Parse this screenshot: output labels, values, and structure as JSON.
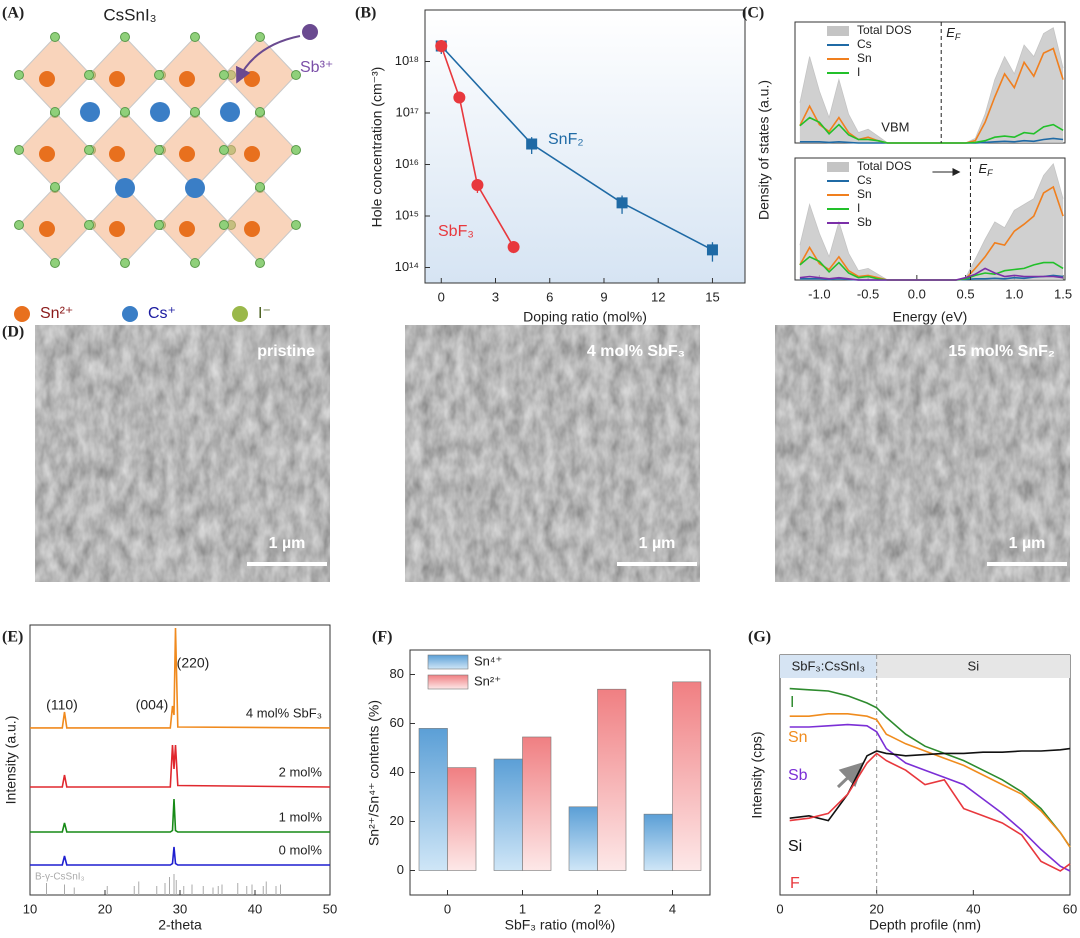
{
  "panel_a": {
    "label": "(A)",
    "title": "CsSnI₃",
    "dopant": "Sb³⁺",
    "legend": [
      "Sn²⁺",
      "Cs⁺",
      "I⁻"
    ]
  },
  "panel_d": {
    "label": "(D)",
    "images": [
      {
        "caption": "pristine",
        "scale": "1 µm"
      },
      {
        "caption": "4 mol% SbF₃",
        "scale": "1 µm"
      },
      {
        "caption": "15 mol% SnF₂",
        "scale": "1 µm"
      }
    ]
  },
  "chart_data": [
    {
      "type": "line",
      "panel": "(B)",
      "xlabel": "Doping ratio (mol%)",
      "ylabel": "Hole concentration (cm⁻³)",
      "log_y": true,
      "background": "#d6e4f3",
      "xlim": [
        -0.9,
        16.8
      ],
      "ylim": [
        50000000000000.0,
        1e+19
      ],
      "xticks": [
        0,
        3,
        6,
        9,
        12,
        15
      ],
      "yticks": [
        {
          "value": 100000000000000.0,
          "label": "10¹⁴"
        },
        {
          "value": 1000000000000000.0,
          "label": "10¹⁵"
        },
        {
          "value": 1e+16,
          "label": "10¹⁶"
        },
        {
          "value": 1e+17,
          "label": "10¹⁷"
        },
        {
          "value": 1e+18,
          "label": "10¹⁸"
        }
      ],
      "series": [
        {
          "name": "SnF₂",
          "color": "#1f6aa5",
          "marker": "square",
          "x": [
            0,
            5,
            10,
            15
          ],
          "values": [
            2e+18,
            2.5e+16,
            1800000000000000.0,
            220000000000000.0
          ],
          "errors": [
            6e+17,
            9000000000000000.0,
            700000000000000.0,
            90000000000000.0
          ]
        },
        {
          "name": "SbF₃",
          "color": "#e8383d",
          "marker": "circle",
          "x": [
            0,
            1,
            2,
            4
          ],
          "values": [
            2e+18,
            2e+17,
            4000000000000000.0,
            250000000000000.0
          ],
          "errors": [
            5e+17,
            4e+16,
            1200000000000000.0,
            60000000000000.0
          ]
        }
      ]
    },
    {
      "type": "line",
      "panel": "(C)",
      "ylabel": "Density of states (a.u.)",
      "xlim": [
        -1.25,
        1.52
      ],
      "ylim": [
        0,
        10.5
      ],
      "vline": 0.25,
      "vline_label": "E",
      "vline_sub": "F",
      "annotation": "VBM",
      "legend": "upper left",
      "x": [
        -1.2,
        -1.1,
        -1.0,
        -0.9,
        -0.8,
        -0.7,
        -0.6,
        -0.5,
        -0.4,
        -0.3,
        -0.2,
        -0.1,
        0,
        0.1,
        0.2,
        0.3,
        0.4,
        0.5,
        0.6,
        0.7,
        0.8,
        0.9,
        1.0,
        1.1,
        1.2,
        1.3,
        1.4,
        1.5
      ],
      "series": [
        {
          "name": "Total DOS",
          "color": "#c4c4c4",
          "style": "area",
          "values": [
            3.5,
            7.5,
            4.5,
            2.2,
            5.5,
            2.5,
            0.9,
            1.2,
            0.6,
            0,
            0,
            0,
            0,
            0,
            0,
            0,
            0,
            0,
            0.4,
            2.5,
            5.5,
            7.5,
            6,
            8.5,
            7.5,
            9.5,
            10,
            6.5
          ]
        },
        {
          "name": "Cs",
          "color": "#1f6aa5",
          "values": [
            0.1,
            0.1,
            0.1,
            0.05,
            0.1,
            0.05,
            0,
            0,
            0,
            0,
            0,
            0,
            0,
            0,
            0,
            0,
            0,
            0,
            0,
            0.05,
            0.1,
            0.15,
            0.1,
            0.2,
            0.15,
            0.3,
            0.4,
            0.3
          ]
        },
        {
          "name": "Sn",
          "color": "#f07f1e",
          "values": [
            1.5,
            3.2,
            1.6,
            1,
            2.2,
            0.9,
            0.3,
            0.5,
            0.2,
            0,
            0,
            0,
            0,
            0,
            0,
            0,
            0,
            0,
            0.2,
            1.8,
            4,
            6,
            4.8,
            7,
            5.8,
            7.8,
            8.2,
            5.5
          ]
        },
        {
          "name": "I",
          "color": "#22c02a",
          "values": [
            1.5,
            2.2,
            1.8,
            0.8,
            1.6,
            0.7,
            0.3,
            0.3,
            0.2,
            0,
            0,
            0,
            0,
            0,
            0,
            0,
            0,
            0,
            0.05,
            0.2,
            0.5,
            0.6,
            0.5,
            0.9,
            0.8,
            1.4,
            1.6,
            1.1
          ]
        }
      ]
    },
    {
      "type": "line",
      "xlabel": "Energy (eV)",
      "xlim": [
        -1.25,
        1.52
      ],
      "ylim": [
        0,
        10.5
      ],
      "vline": 0.55,
      "vline_label": "E",
      "vline_sub": "F",
      "legend": "upper left",
      "xticks": [
        {
          "value": -1,
          "label": "-1.0"
        },
        -0.5,
        {
          "value": 0,
          "label": "0.0"
        },
        0.5,
        {
          "value": 1,
          "label": "1.0"
        },
        1.5
      ],
      "x": [
        -1.2,
        -1.1,
        -1.0,
        -0.9,
        -0.8,
        -0.7,
        -0.6,
        -0.5,
        -0.4,
        -0.3,
        -0.2,
        -0.1,
        0,
        0.1,
        0.2,
        0.3,
        0.4,
        0.5,
        0.6,
        0.7,
        0.8,
        0.9,
        1.0,
        1.1,
        1.2,
        1.3,
        1.4,
        1.5
      ],
      "series": [
        {
          "name": "Total DOS",
          "color": "#c4c4c4",
          "style": "area",
          "values": [
            3,
            6.5,
            4,
            2,
            5,
            2.3,
            0.8,
            1,
            0.5,
            0,
            0,
            0,
            0,
            0,
            0,
            0,
            0,
            0.2,
            1.8,
            3.5,
            5,
            4.5,
            6,
            6.5,
            7,
            9,
            10,
            7
          ]
        },
        {
          "name": "Cs",
          "color": "#1f6aa5",
          "values": [
            0.1,
            0.1,
            0.1,
            0.05,
            0.1,
            0.05,
            0,
            0,
            0,
            0,
            0,
            0,
            0,
            0,
            0,
            0,
            0,
            0.05,
            0.1,
            0.1,
            0.15,
            0.1,
            0.2,
            0.15,
            0.25,
            0.3,
            0.4,
            0.3
          ]
        },
        {
          "name": "Sn",
          "color": "#f07f1e",
          "values": [
            1.3,
            2.8,
            1.4,
            0.9,
            2,
            0.8,
            0.3,
            0.4,
            0.2,
            0,
            0,
            0,
            0,
            0,
            0,
            0,
            0,
            0.1,
            1,
            2,
            3.2,
            3,
            4.2,
            4.8,
            5.5,
            7.5,
            8,
            5.5
          ]
        },
        {
          "name": "I",
          "color": "#22c02a",
          "values": [
            1.3,
            2,
            1.6,
            0.7,
            1.5,
            0.6,
            0.2,
            0.3,
            0.1,
            0,
            0,
            0,
            0,
            0,
            0,
            0,
            0,
            0.1,
            0.4,
            0.6,
            0.5,
            0.8,
            0.9,
            1,
            1.3,
            1.5,
            1.5,
            1
          ]
        },
        {
          "name": "Sb",
          "color": "#7b2fa8",
          "values": [
            0.2,
            0.3,
            0.2,
            0.1,
            0.2,
            0.1,
            0,
            0,
            0,
            0,
            0,
            0,
            0,
            0,
            0,
            0,
            0,
            0.2,
            0.5,
            1,
            0.6,
            0.3,
            0.4,
            0.3,
            0.3,
            0.3,
            0.3,
            0.2
          ]
        }
      ]
    },
    {
      "type": "line",
      "panel": "(E)",
      "xlabel": "2-theta",
      "ylabel": "Intensity (a.u.)",
      "xlim": [
        10,
        50
      ],
      "ylim": [
        0,
        9
      ],
      "xticks": [
        10,
        20,
        30,
        40,
        50
      ],
      "peak_labels": [
        "(110)",
        "(004)",
        "(220)"
      ],
      "x": [
        10,
        14.3,
        14.6,
        14.9,
        28.7,
        29.0,
        29.2,
        29.4,
        29.7,
        50
      ],
      "series": [
        {
          "name": "0 mol%",
          "color": "#1f1fd0",
          "values": [
            1.0,
            1.0,
            1.3,
            1.0,
            1.0,
            1.05,
            1.6,
            1.05,
            1.0,
            1.0
          ]
        },
        {
          "name": "1 mol%",
          "color": "#178a17",
          "values": [
            2.1,
            2.1,
            2.4,
            2.1,
            2.1,
            2.15,
            3.2,
            2.15,
            2.1,
            2.1
          ]
        },
        {
          "name": "2 mol%",
          "color": "#e0282e",
          "values": [
            3.6,
            3.6,
            4.0,
            3.6,
            3.6,
            5.0,
            4.2,
            5.0,
            3.65,
            3.6
          ]
        },
        {
          "name": "4 mol% SbF₃",
          "color": "#f08a1e",
          "values": [
            5.57,
            5.57,
            6.1,
            5.57,
            5.57,
            6.3,
            6.0,
            8.9,
            5.6,
            5.57
          ]
        }
      ],
      "reference": {
        "name": "B-γ-CsSnI₃",
        "color": "#aaaaaa",
        "x": [
          12.2,
          14.6,
          15.9,
          20.3,
          23.9,
          24.5,
          26.9,
          28.0,
          28.6,
          29.2,
          29.5,
          30.5,
          31.6,
          33.1,
          34.4,
          35.1,
          35.6,
          37.7,
          38.9,
          39.6,
          41.1,
          41.5,
          42.8,
          43.4
        ],
        "values": [
          0.4,
          0.35,
          0.25,
          0.3,
          0.3,
          0.45,
          0.3,
          0.4,
          0.6,
          0.7,
          0.5,
          0.3,
          0.35,
          0.3,
          0.25,
          0.3,
          0.35,
          0.4,
          0.3,
          0.35,
          0.3,
          0.45,
          0.3,
          0.35
        ]
      }
    },
    {
      "type": "bar",
      "panel": "(F)",
      "xlabel": "SbF₃ ratio (mol%)",
      "ylabel": "Sn²⁺/Sn⁴⁺ contents (%)",
      "categories": [
        "0",
        "1",
        "2",
        "4"
      ],
      "ylim": [
        -10,
        90
      ],
      "yticks": [
        0,
        20,
        40,
        60,
        80
      ],
      "legend": "upper left",
      "series": [
        {
          "name": "Sn⁴⁺",
          "color": "#5b9fd6",
          "values": [
            58,
            45.5,
            26,
            23
          ]
        },
        {
          "name": "Sn²⁺",
          "color": "#f07f82",
          "values": [
            42,
            54.5,
            74,
            77
          ]
        }
      ]
    },
    {
      "type": "line",
      "panel": "(G)",
      "xlabel": "Depth profile (nm)",
      "ylabel": "Intensity (cps)",
      "xlim": [
        0,
        60
      ],
      "ylim": [
        0,
        10
      ],
      "xticks": [
        0,
        20,
        40,
        60
      ],
      "divider": 20,
      "regions": [
        "SbF₃:CsSnI₃",
        "Si"
      ],
      "x": [
        2,
        6,
        10,
        14,
        18,
        20,
        22,
        26,
        30,
        34,
        38,
        42,
        46,
        50,
        54,
        58,
        60
      ],
      "series": [
        {
          "name": "I",
          "color": "#2e8b2e",
          "values": [
            8.6,
            8.55,
            8.5,
            8.3,
            8.0,
            7.8,
            7.4,
            6.7,
            6.2,
            5.9,
            5.6,
            5.2,
            4.8,
            4.3,
            3.6,
            2.6,
            2.0
          ]
        },
        {
          "name": "Sn",
          "color": "#f08c1e",
          "values": [
            7.45,
            7.45,
            7.55,
            7.55,
            7.45,
            7.3,
            6.7,
            6.3,
            6.0,
            5.7,
            5.4,
            5.0,
            4.6,
            4.2,
            3.5,
            2.6,
            2.0
          ]
        },
        {
          "name": "Sb",
          "color": "#7b2fd6",
          "values": [
            7.0,
            7.0,
            7.05,
            7.1,
            7.05,
            6.8,
            6.1,
            5.5,
            5.2,
            4.9,
            4.6,
            4.0,
            3.4,
            2.7,
            1.9,
            1.2,
            1.0
          ]
        },
        {
          "name": "Si",
          "color": "#111111",
          "values": [
            3.2,
            3.3,
            3.1,
            4.2,
            5.8,
            6.0,
            5.9,
            5.8,
            5.85,
            5.9,
            5.9,
            5.95,
            5.95,
            6.0,
            6.0,
            6.05,
            6.1
          ]
        },
        {
          "name": "F",
          "color": "#e8383d",
          "values": [
            3.1,
            3.2,
            3.4,
            4.2,
            5.5,
            5.9,
            5.6,
            5.2,
            4.6,
            4.8,
            3.6,
            3.3,
            3.0,
            2.5,
            1.4,
            1.0,
            1.3
          ]
        }
      ]
    }
  ]
}
